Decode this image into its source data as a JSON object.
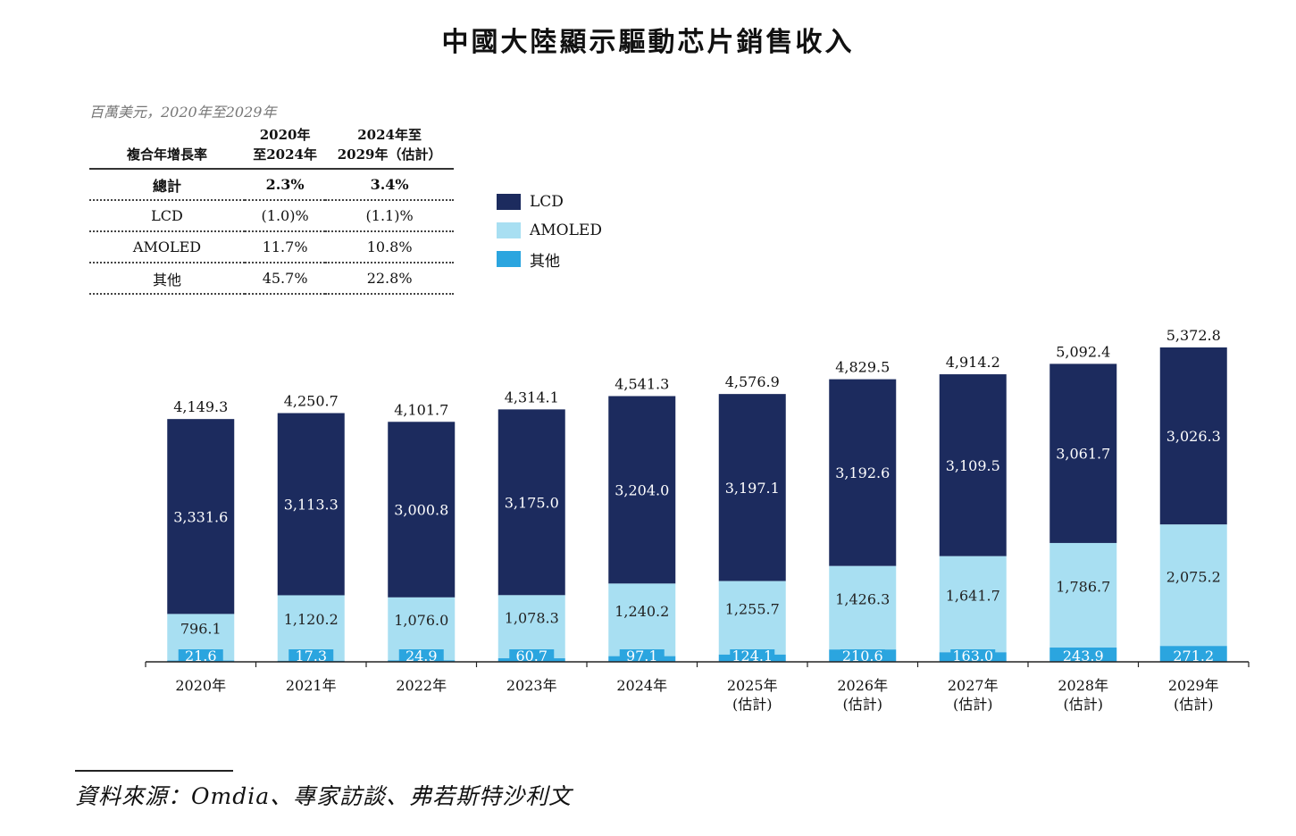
{
  "title": "中國大陸顯示驅動芯片銷售收入",
  "unit_note": "百萬美元，2020年至2029年",
  "cagr_table": {
    "header": {
      "col0": "複合年增長率",
      "col1_line1": "2020年",
      "col1_line2": "至2024年",
      "col2_line1": "2024年至",
      "col2_line2": "2029年（估計）"
    },
    "rows": [
      {
        "label": "總計",
        "v1": "2.3%",
        "v2": "3.4%"
      },
      {
        "label": "LCD",
        "v1": "(1.0)%",
        "v2": "(1.1)%"
      },
      {
        "label": "AMOLED",
        "v1": "11.7%",
        "v2": "10.8%"
      },
      {
        "label": "其他",
        "v1": "45.7%",
        "v2": "22.8%"
      }
    ]
  },
  "legend": [
    {
      "label": "LCD",
      "color": "#1c2b5e"
    },
    {
      "label": "AMOLED",
      "color": "#a8dff2"
    },
    {
      "label": "其他",
      "color": "#2ba5df"
    }
  ],
  "source": "資料來源：Omdia、專家訪談、弗若斯特沙利文",
  "chart_data": {
    "type": "bar",
    "stacked": true,
    "categories": [
      "2020年",
      "2021年",
      "2022年",
      "2023年",
      "2024年",
      "2025年",
      "2026年",
      "2027年",
      "2028年",
      "2029年"
    ],
    "category_sublabels": [
      "",
      "",
      "",
      "",
      "",
      "(估計)",
      "(估計)",
      "(估計)",
      "(估計)",
      "(估計)"
    ],
    "series": [
      {
        "name": "其他",
        "color": "#2ba5df",
        "values": [
          21.6,
          17.3,
          24.9,
          60.7,
          97.1,
          124.1,
          210.6,
          163.0,
          243.9,
          271.2
        ]
      },
      {
        "name": "AMOLED",
        "color": "#a8dff2",
        "values": [
          796.1,
          1120.2,
          1076.0,
          1078.3,
          1240.2,
          1255.7,
          1426.3,
          1641.7,
          1786.7,
          2075.2
        ]
      },
      {
        "name": "LCD",
        "color": "#1c2b5e",
        "values": [
          3331.6,
          3113.3,
          3000.8,
          3175.0,
          3204.0,
          3197.1,
          3192.6,
          3109.5,
          3061.7,
          3026.3
        ]
      }
    ],
    "totals": [
      4149.3,
      4250.7,
      4101.7,
      4314.1,
      4541.3,
      4576.9,
      4829.5,
      4914.2,
      5092.4,
      5372.8
    ],
    "ylim": [
      0,
      5372.8
    ]
  }
}
